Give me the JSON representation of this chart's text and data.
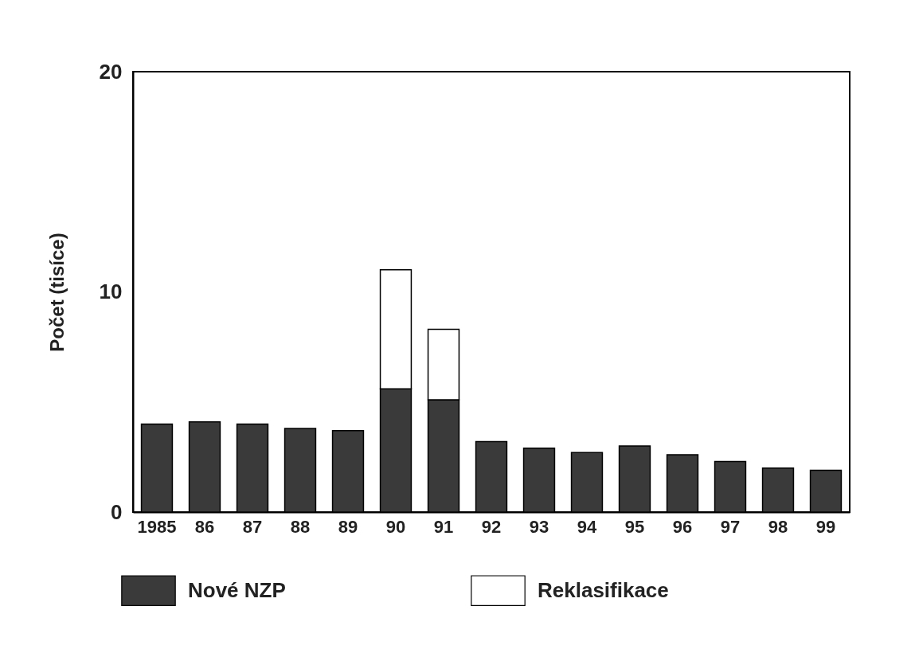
{
  "chart_data": {
    "type": "bar",
    "stacked": true,
    "ylabel": "Počet (tisíce)",
    "categories": [
      "1985",
      "86",
      "87",
      "88",
      "89",
      "90",
      "91",
      "92",
      "93",
      "94",
      "95",
      "96",
      "97",
      "98",
      "99"
    ],
    "series": [
      {
        "name": "Nové NZP",
        "color": "#3a3a3a",
        "values": [
          4.0,
          4.1,
          4.0,
          3.8,
          3.7,
          5.6,
          5.1,
          3.2,
          2.9,
          2.7,
          3.0,
          2.6,
          2.3,
          2.0,
          1.9
        ]
      },
      {
        "name": "Reklasifikace",
        "color": "#ffffff",
        "values": [
          null,
          null,
          null,
          null,
          null,
          5.4,
          3.2,
          null,
          null,
          null,
          null,
          null,
          null,
          null,
          null
        ]
      }
    ],
    "ylim": [
      0,
      20
    ],
    "yticks": [
      0,
      10,
      20
    ],
    "grid": false,
    "legend": "bottom"
  }
}
